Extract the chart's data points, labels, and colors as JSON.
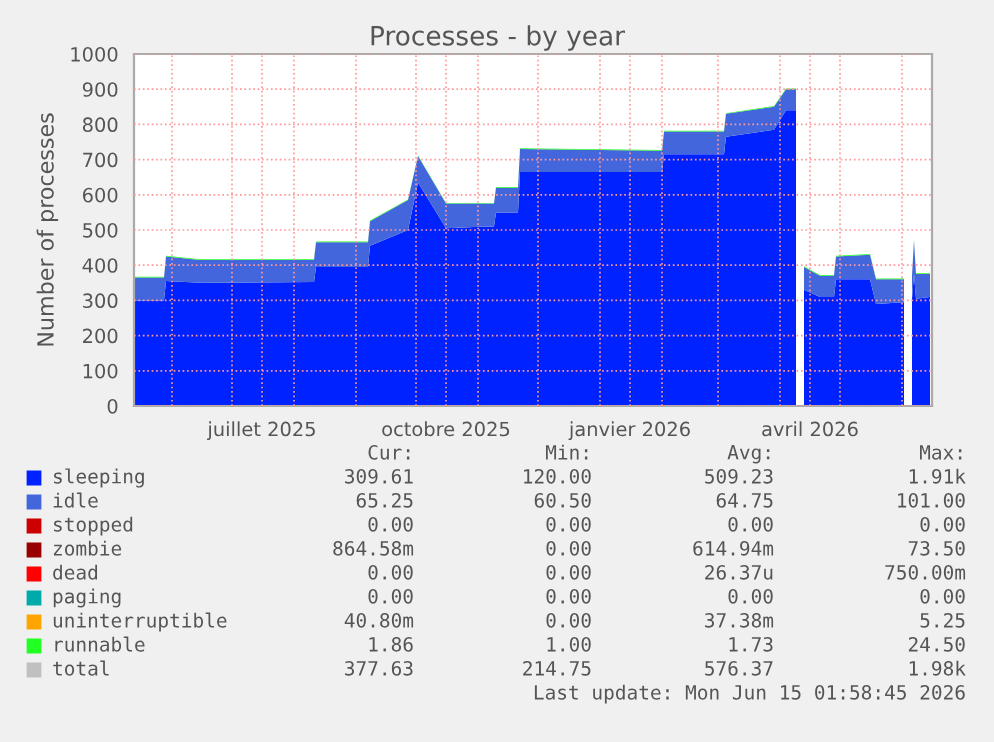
{
  "chart_data": {
    "type": "area",
    "stacked": true,
    "title": "Processes - by year",
    "ylabel": "Number of processes",
    "x": [
      "2025-05-13",
      "2025-05-28",
      "2025-05-29",
      "2025-06-15",
      "2025-08-11",
      "2025-08-12",
      "2025-09-07",
      "2025-09-08",
      "2025-09-27",
      "2025-10-02",
      "2025-10-16",
      "2025-11-05",
      "2025-11-09",
      "2025-11-10",
      "2025-11-21",
      "2025-11-22",
      "2026-02-01",
      "2026-02-02",
      "2026-03-04",
      "2026-03-05",
      "2026-03-29",
      "2026-04-04",
      "2026-04-09",
      "2026-04-11",
      "2026-04-13",
      "2026-04-21",
      "2026-04-28",
      "2026-04-29",
      "2026-05-16",
      "2026-05-19",
      "2026-06-02",
      "2026-06-04",
      "2026-06-06",
      "2026-06-07",
      "2026-06-08",
      "2026-06-15"
    ],
    "series": [
      {
        "name": "sleeping",
        "color": "#0022ff",
        "values": [
          300,
          300,
          355,
          350,
          352,
          395,
          395,
          455,
          500,
          635,
          505,
          510,
          510,
          550,
          550,
          665,
          665,
          715,
          715,
          765,
          785,
          840,
          840,
          null,
          330,
          310,
          310,
          360,
          360,
          290,
          295,
          null,
          305,
          375,
          305,
          310
        ]
      },
      {
        "name": "idle",
        "color": "#4466dd",
        "values": [
          65,
          65,
          70,
          65,
          63,
          70,
          70,
          70,
          85,
          75,
          70,
          65,
          65,
          70,
          70,
          65,
          60,
          65,
          65,
          65,
          65,
          60,
          60,
          null,
          65,
          60,
          60,
          65,
          70,
          70,
          65,
          null,
          65,
          95,
          70,
          65
        ]
      },
      {
        "name": "stopped",
        "color": "#cc0000",
        "values": [
          null,
          null,
          null,
          null,
          null,
          null,
          null,
          null,
          null,
          null,
          null,
          null,
          null,
          null,
          null,
          null,
          null,
          null,
          null,
          null,
          null,
          null,
          null,
          null,
          null,
          null,
          null,
          null,
          null,
          null,
          null,
          null,
          null,
          null,
          null,
          null
        ]
      },
      {
        "name": "zombie",
        "color": "#990000",
        "values": [
          null,
          null,
          null,
          null,
          null,
          null,
          null,
          null,
          null,
          null,
          null,
          null,
          null,
          null,
          null,
          null,
          null,
          null,
          null,
          null,
          null,
          null,
          null,
          null,
          null,
          null,
          null,
          null,
          null,
          null,
          null,
          null,
          null,
          null,
          null,
          null
        ]
      },
      {
        "name": "dead",
        "color": "#ff0000",
        "values": [
          null,
          null,
          null,
          null,
          null,
          null,
          null,
          null,
          null,
          null,
          null,
          null,
          null,
          null,
          null,
          null,
          null,
          null,
          null,
          null,
          null,
          null,
          null,
          null,
          null,
          null,
          null,
          null,
          null,
          null,
          null,
          null,
          null,
          null,
          null,
          null
        ]
      },
      {
        "name": "paging",
        "color": "#00aaaa",
        "values": [
          null,
          null,
          null,
          null,
          null,
          null,
          null,
          null,
          null,
          null,
          null,
          null,
          null,
          null,
          null,
          null,
          null,
          null,
          null,
          null,
          null,
          null,
          null,
          null,
          null,
          null,
          null,
          null,
          null,
          null,
          null,
          null,
          null,
          null,
          null,
          null
        ]
      },
      {
        "name": "uninterruptible",
        "color": "#ffa500",
        "values": [
          null,
          null,
          null,
          null,
          null,
          null,
          null,
          null,
          null,
          null,
          null,
          null,
          null,
          null,
          null,
          null,
          null,
          null,
          null,
          null,
          null,
          null,
          null,
          null,
          null,
          null,
          null,
          null,
          null,
          null,
          null,
          null,
          null,
          null,
          null,
          null
        ]
      },
      {
        "name": "runnable",
        "color": "#22ff22",
        "values": [
          2,
          2,
          2,
          2,
          2,
          2,
          2,
          2,
          2,
          2,
          2,
          2,
          2,
          2,
          2,
          2,
          2,
          2,
          2,
          2,
          2,
          2,
          2,
          null,
          2,
          2,
          2,
          2,
          2,
          2,
          2,
          null,
          2,
          2,
          2,
          2
        ]
      },
      {
        "name": "total",
        "color": "#c0c0c0",
        "values": [
          null,
          null,
          null,
          null,
          null,
          null,
          null,
          null,
          null,
          null,
          null,
          null,
          null,
          null,
          null,
          null,
          null,
          null,
          null,
          null,
          null,
          null,
          null,
          null,
          null,
          null,
          null,
          null,
          null,
          null,
          null,
          null,
          null,
          null,
          null,
          null
        ]
      }
    ],
    "xlim": [
      "2025-05-13",
      "2026-06-16"
    ],
    "xticks": [
      {
        "value": "2025-06-01",
        "label": null
      },
      {
        "value": "2025-07-01",
        "label": null
      },
      {
        "value": "2025-07-16",
        "label": "juillet 2025"
      },
      {
        "value": "2025-08-01",
        "label": null
      },
      {
        "value": "2025-09-01",
        "label": null
      },
      {
        "value": "2025-10-01",
        "label": null
      },
      {
        "value": "2025-10-16",
        "label": "octobre 2025"
      },
      {
        "value": "2025-11-01",
        "label": null
      },
      {
        "value": "2025-12-01",
        "label": null
      },
      {
        "value": "2026-01-01",
        "label": null
      },
      {
        "value": "2026-01-16",
        "label": "janvier 2026"
      },
      {
        "value": "2026-02-01",
        "label": null
      },
      {
        "value": "2026-03-01",
        "label": null
      },
      {
        "value": "2026-04-01",
        "label": null
      },
      {
        "value": "2026-04-16",
        "label": "avril 2026"
      },
      {
        "value": "2026-05-01",
        "label": null
      },
      {
        "value": "2026-06-01",
        "label": null
      }
    ],
    "ylim": [
      0,
      1000
    ],
    "yticks": [
      0,
      100,
      200,
      300,
      400,
      500,
      600,
      700,
      800,
      900,
      1000
    ],
    "grid": true,
    "legend": "bottom",
    "annotations": [
      "Cur:",
      "Min:",
      "Avg:",
      "Max:",
      "309.61",
      "120.00",
      "509.23",
      "1.91k",
      "65.25",
      "60.50",
      "64.75",
      "101.00",
      "0.00",
      "0.00",
      "0.00",
      "0.00",
      "864.58m",
      "0.00",
      "614.94m",
      "73.50",
      "0.00",
      "0.00",
      "26.37u",
      "750.00m",
      "0.00",
      "0.00",
      "0.00",
      "0.00",
      "40.80m",
      "0.00",
      "37.38m",
      "5.25",
      "1.86",
      "1.00",
      "1.73",
      "24.50",
      "377.63",
      "214.75",
      "576.37",
      "1.98k",
      "Last update: Mon Jun 15 01:58:45 2026"
    ]
  }
}
